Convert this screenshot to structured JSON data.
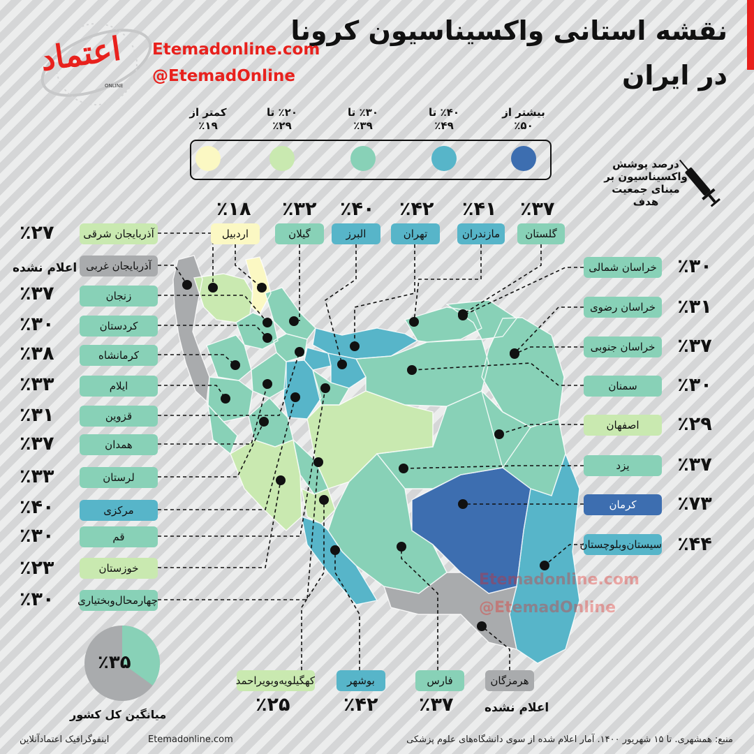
{
  "title": {
    "line1": "نقشه استانی واکسیناسیون کرونا",
    "line2": "در ایران"
  },
  "brand": {
    "website": "Etemadonline.com",
    "handle": "@EtemadOnline",
    "logo_text": "اعتماد",
    "logo_sub": "ONLINE"
  },
  "legend": {
    "items": [
      {
        "label": "بیشتر از\n٪۵۰",
        "color": "#3d6eb0"
      },
      {
        "label": "٪۴۰ تا\n٪۴۹",
        "color": "#57b5c9"
      },
      {
        "label": "٪۳۰ تا\n٪۳۹",
        "color": "#88d1b7"
      },
      {
        "label": "٪۲۰ تا\n٪۲۹",
        "color": "#c9e9b0"
      },
      {
        "label": "کمتر از\n٪۱۹",
        "color": "#fbf8c3"
      }
    ]
  },
  "vaccination_note": "درصد پوشش واکسیناسیون بر مبنای جمعیت هدف",
  "provinces": [
    {
      "name": "آذربایجان شرقی",
      "value": "٪۲۷",
      "color": "#c9e9b0"
    },
    {
      "name": "آذربایجان غربی",
      "value": "اعلام نشده",
      "color": "#a9abad"
    },
    {
      "name": "زنجان",
      "value": "٪۳۷",
      "color": "#88d1b7"
    },
    {
      "name": "کردستان",
      "value": "٪۳۰",
      "color": "#88d1b7"
    },
    {
      "name": "کرمانشاه",
      "value": "٪۳۸",
      "color": "#88d1b7"
    },
    {
      "name": "ایلام",
      "value": "٪۳۳",
      "color": "#88d1b7"
    },
    {
      "name": "قزوین",
      "value": "٪۳۱",
      "color": "#88d1b7"
    },
    {
      "name": "همدان",
      "value": "٪۳۷",
      "color": "#88d1b7"
    },
    {
      "name": "لرستان",
      "value": "٪۳۳",
      "color": "#88d1b7"
    },
    {
      "name": "مرکزی",
      "value": "٪۴۰",
      "color": "#57b5c9"
    },
    {
      "name": "قم",
      "value": "٪۳۰",
      "color": "#88d1b7"
    },
    {
      "name": "خوزستان",
      "value": "٪۲۳",
      "color": "#c9e9b0"
    },
    {
      "name": "چهارمحال‌وبختیاری",
      "value": "٪۳۰",
      "color": "#88d1b7"
    },
    {
      "name": "اردبیل",
      "value": "٪۱۸",
      "color": "#fbf8c3"
    },
    {
      "name": "گیلان",
      "value": "٪۳۲",
      "color": "#88d1b7"
    },
    {
      "name": "البرز",
      "value": "٪۴۰",
      "color": "#57b5c9"
    },
    {
      "name": "تهران",
      "value": "٪۴۲",
      "color": "#57b5c9"
    },
    {
      "name": "مازندران",
      "value": "٪۴۱",
      "color": "#57b5c9"
    },
    {
      "name": "گلستان",
      "value": "٪۳۷",
      "color": "#88d1b7"
    },
    {
      "name": "خراسان شمالی",
      "value": "٪۳۰",
      "color": "#88d1b7"
    },
    {
      "name": "خراسان رضوی",
      "value": "٪۳۱",
      "color": "#88d1b7"
    },
    {
      "name": "خراسان جنوبی",
      "value": "٪۳۷",
      "color": "#88d1b7"
    },
    {
      "name": "سمنان",
      "value": "٪۳۰",
      "color": "#88d1b7"
    },
    {
      "name": "اصفهان",
      "value": "٪۲۹",
      "color": "#c9e9b0"
    },
    {
      "name": "یزد",
      "value": "٪۳۷",
      "color": "#88d1b7"
    },
    {
      "name": "کرمان",
      "value": "٪۷۳",
      "color": "#3d6eb0"
    },
    {
      "name": "سیستان‌وبلوچستان",
      "value": "٪۴۴",
      "color": "#57b5c9"
    },
    {
      "name": "کهگیلویه‌وبویراحمد",
      "value": "٪۲۵",
      "color": "#c9e9b0"
    },
    {
      "name": "بوشهر",
      "value": "٪۴۲",
      "color": "#57b5c9"
    },
    {
      "name": "فارس",
      "value": "٪۳۷",
      "color": "#88d1b7"
    },
    {
      "name": "هرمزگان",
      "value": "اعلام نشده",
      "color": "#a9abad"
    }
  ],
  "national_average": {
    "value": "٪۳۵",
    "fraction": 0.35,
    "label": "میانگین کل کشور"
  },
  "footer": {
    "source": "منبع: همشهری. تا ۱۵ شهریور ۱۴۰۰. آمار اعلام شده از سوی دانشگاه‌های علوم پزشکی",
    "website": "Etemadonline.com",
    "credit": "اینفوگرافیک اعتمادآنلاین"
  }
}
